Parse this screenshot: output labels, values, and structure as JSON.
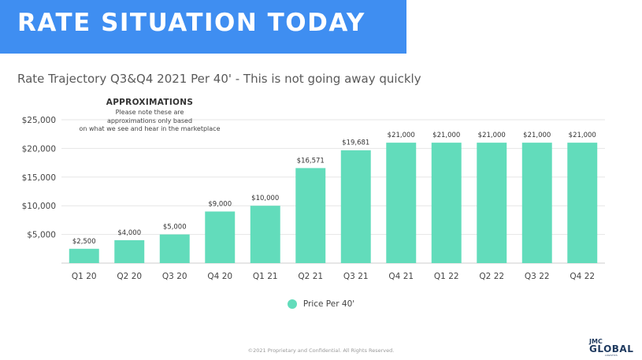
{
  "header": {
    "title": "RATE SITUATION TODAY",
    "subtitle": "Rate Trajectory Q3&Q4 2021 Per 40' - This is not going away quickly"
  },
  "note": {
    "title": "APPROXIMATIONS",
    "line1": "Please note these are",
    "line2": "approximations only based",
    "line3": "on what we see and hear in the marketplace"
  },
  "chart_data": {
    "type": "bar",
    "categories": [
      "Q1 20",
      "Q2 20",
      "Q3 20",
      "Q4 20",
      "Q1 21",
      "Q2 21",
      "Q3 21",
      "Q4 21",
      "Q1 22",
      "Q2 22",
      "Q3 22",
      "Q4 22"
    ],
    "series": [
      {
        "name": "Price Per 40'",
        "values": [
          2500,
          4000,
          5000,
          9000,
          10000,
          16571,
          19681,
          21000,
          21000,
          21000,
          21000,
          21000
        ],
        "labels": [
          "$2,500",
          "$4,000",
          "$5,000",
          "$9,000",
          "$10,000",
          "$16,571",
          "$19,681",
          "$21,000",
          "$21,000",
          "$21,000",
          "$21,000",
          "$21,000"
        ],
        "color": "#62dcbb"
      }
    ],
    "ylim": [
      0,
      25000
    ],
    "yticks": [
      5000,
      10000,
      15000,
      20000,
      25000
    ],
    "ytick_labels": [
      "$5,000",
      "$10,000",
      "$15,000",
      "$20,000",
      "$25,000"
    ],
    "grid": true,
    "legend": "bottom"
  },
  "footer": {
    "text": "©2021 Proprietary and Confidential. All Rights Reserved."
  },
  "logo": {
    "top": "JMC",
    "main": "GLOBAL",
    "sub": "LOGISTICS"
  },
  "colors": {
    "banner": "#3f8ef1",
    "bar": "#62dcbb",
    "grid": "#e6e6e6"
  }
}
